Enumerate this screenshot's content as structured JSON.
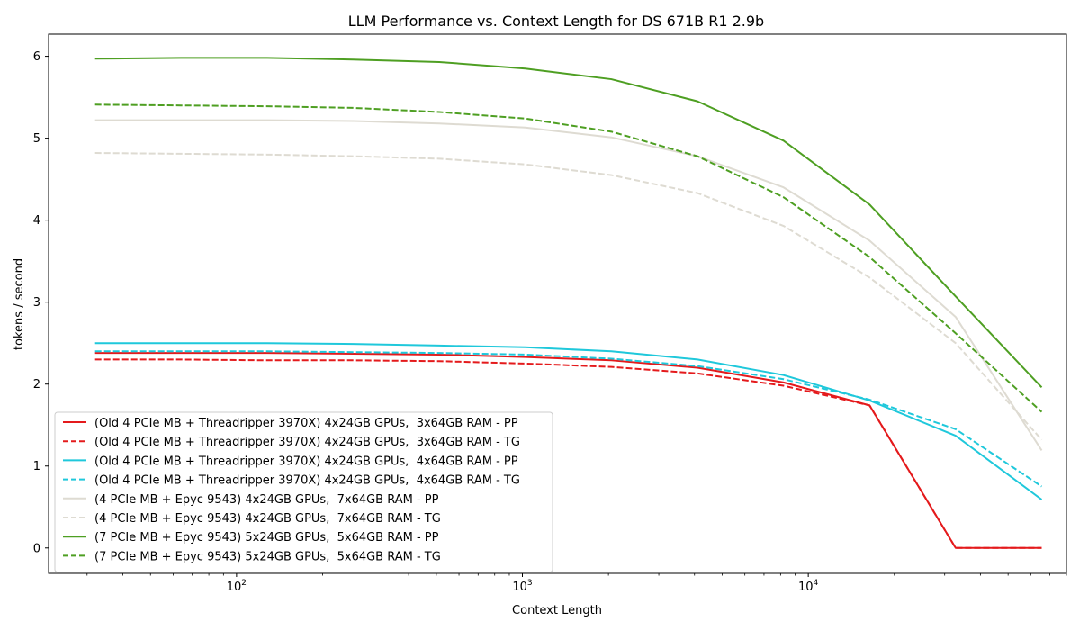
{
  "chart_data": {
    "type": "line",
    "title": "LLM Performance vs. Context Length for DS 671B R1 2.9b",
    "xlabel": "Context Length",
    "ylabel": "tokens / second",
    "xscale": "log",
    "xlim": [
      22,
      80000
    ],
    "ylim": [
      -0.31,
      6.27
    ],
    "x_ticks": [
      100,
      1000,
      10000
    ],
    "x_tick_labels": [
      "10",
      "10",
      "10"
    ],
    "x_tick_exponents": [
      "2",
      "3",
      "4"
    ],
    "y_ticks": [
      0,
      1,
      2,
      3,
      4,
      5,
      6
    ],
    "y_tick_labels": [
      "0",
      "1",
      "2",
      "3",
      "4",
      "5",
      "6"
    ],
    "grid": false,
    "legend_position": "lower-left",
    "x": [
      32,
      64,
      128,
      256,
      512,
      1024,
      2048,
      4096,
      8192,
      16384,
      32768,
      65536
    ],
    "series": [
      {
        "name": "(Old 4 PCIe MB + Threadripper 3970X) 4x24GB GPUs,  3x64GB RAM - PP",
        "color": "#e41a1c",
        "dash": "solid",
        "values": [
          2.38,
          2.38,
          2.38,
          2.37,
          2.36,
          2.33,
          2.29,
          2.2,
          2.02,
          1.74,
          0.0,
          0.0
        ]
      },
      {
        "name": "(Old 4 PCIe MB + Threadripper 3970X) 4x24GB GPUs,  3x64GB RAM - TG",
        "color": "#e41a1c",
        "dash": "dashed",
        "values": [
          2.3,
          2.3,
          2.29,
          2.29,
          2.28,
          2.25,
          2.21,
          2.13,
          1.98,
          1.74,
          0.0,
          0.0
        ]
      },
      {
        "name": "(Old 4 PCIe MB + Threadripper 3970X) 4x24GB GPUs,  4x64GB RAM - PP",
        "color": "#1fc8db",
        "dash": "solid",
        "values": [
          2.5,
          2.5,
          2.5,
          2.49,
          2.47,
          2.45,
          2.4,
          2.3,
          2.11,
          1.8,
          1.37,
          0.59
        ]
      },
      {
        "name": "(Old 4 PCIe MB + Threadripper 3970X) 4x24GB GPUs,  4x64GB RAM - TG",
        "color": "#1fc8db",
        "dash": "dashed",
        "values": [
          2.4,
          2.4,
          2.4,
          2.39,
          2.38,
          2.36,
          2.31,
          2.22,
          2.06,
          1.81,
          1.45,
          0.75
        ]
      },
      {
        "name": "(4 PCIe MB + Epyc 9543) 4x24GB GPUs,  7x64GB RAM - PP",
        "color": "#dedbd2",
        "dash": "solid",
        "values": [
          5.22,
          5.22,
          5.22,
          5.21,
          5.18,
          5.13,
          5.01,
          4.78,
          4.4,
          3.75,
          2.82,
          1.19
        ]
      },
      {
        "name": "(4 PCIe MB + Epyc 9543) 4x24GB GPUs,  7x64GB RAM - TG",
        "color": "#dedbd2",
        "dash": "dashed",
        "values": [
          4.82,
          4.81,
          4.8,
          4.78,
          4.75,
          4.68,
          4.55,
          4.33,
          3.93,
          3.3,
          2.5,
          1.32
        ]
      },
      {
        "name": "(7 PCIe MB + Epyc 9543) 5x24GB GPUs,  5x64GB RAM - PP",
        "color": "#4e9f22",
        "dash": "solid",
        "values": [
          5.97,
          5.98,
          5.98,
          5.96,
          5.93,
          5.85,
          5.72,
          5.45,
          4.97,
          4.19,
          3.07,
          1.96
        ]
      },
      {
        "name": "(7 PCIe MB + Epyc 9543) 5x24GB GPUs,  5x64GB RAM - TG",
        "color": "#4e9f22",
        "dash": "dashed",
        "values": [
          5.41,
          5.4,
          5.39,
          5.37,
          5.32,
          5.24,
          5.08,
          4.78,
          4.28,
          3.55,
          2.62,
          1.66
        ]
      }
    ]
  }
}
